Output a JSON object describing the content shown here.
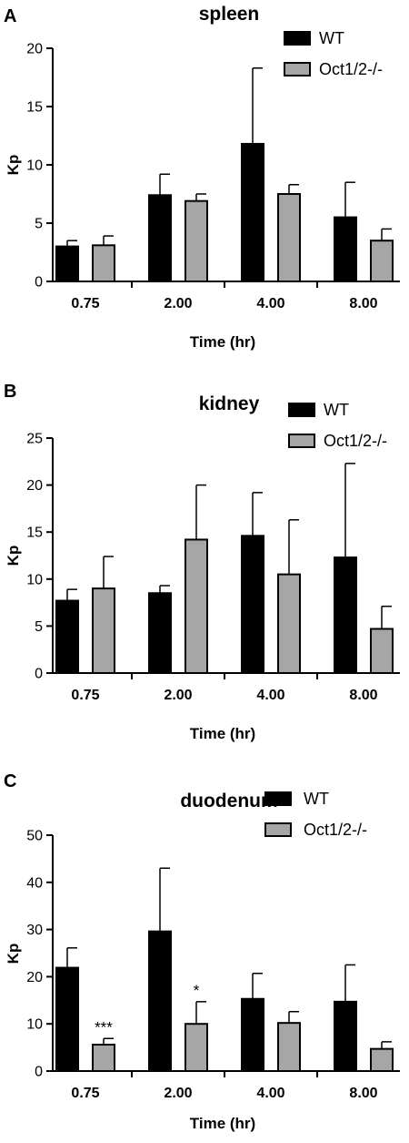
{
  "chart_data": [
    {
      "type": "bar",
      "panel": "A",
      "title": "spleen",
      "xlabel": "Time (hr)",
      "ylabel": "Kp",
      "ylim": [
        0,
        20
      ],
      "yticks": [
        "0",
        "5",
        "10",
        "15",
        "20"
      ],
      "categories": [
        "0.75",
        "2.00",
        "4.00",
        "8.00"
      ],
      "legend_position": "top-right",
      "series": [
        {
          "name": "WT",
          "color": "#000000",
          "values": [
            3.0,
            7.4,
            11.8,
            5.5
          ],
          "errors": [
            0.5,
            1.8,
            6.5,
            3.0
          ]
        },
        {
          "name": "Oct1/2-/-",
          "color": "#a6a6a6",
          "values": [
            3.1,
            6.9,
            7.5,
            3.5
          ],
          "errors": [
            0.8,
            0.6,
            0.8,
            1.0
          ]
        }
      ],
      "annotations": [
        "",
        "",
        "",
        ""
      ]
    },
    {
      "type": "bar",
      "panel": "B",
      "title": "kidney",
      "xlabel": "Time (hr)",
      "ylabel": "Kp",
      "ylim": [
        0,
        25
      ],
      "yticks": [
        "0",
        "5",
        "10",
        "15",
        "20",
        "25"
      ],
      "categories": [
        "0.75",
        "2.00",
        "4.00",
        "8.00"
      ],
      "legend_position": "top-right",
      "series": [
        {
          "name": "WT",
          "color": "#000000",
          "values": [
            7.7,
            8.5,
            14.6,
            12.3
          ],
          "errors": [
            1.2,
            0.8,
            4.6,
            10.0
          ]
        },
        {
          "name": "Oct1/2-/-",
          "color": "#a6a6a6",
          "values": [
            9.0,
            14.2,
            10.5,
            4.7
          ],
          "errors": [
            3.4,
            5.8,
            5.8,
            2.4
          ]
        }
      ],
      "annotations": [
        "",
        "",
        "",
        ""
      ]
    },
    {
      "type": "bar",
      "panel": "C",
      "title": "duodenum",
      "xlabel": "Time (hr)",
      "ylabel": "Kp",
      "ylim": [
        0,
        50
      ],
      "yticks": [
        "0",
        "10",
        "20",
        "30",
        "40",
        "50"
      ],
      "categories": [
        "0.75",
        "2.00",
        "4.00",
        "8.00"
      ],
      "legend_position": "top-right",
      "series": [
        {
          "name": "WT",
          "color": "#000000",
          "values": [
            21.9,
            29.6,
            15.3,
            14.7
          ],
          "errors": [
            4.2,
            13.4,
            5.4,
            7.8
          ]
        },
        {
          "name": "Oct1/2-/-",
          "color": "#a6a6a6",
          "values": [
            5.6,
            10.0,
            10.2,
            4.7
          ],
          "errors": [
            1.3,
            4.7,
            2.4,
            1.5
          ]
        }
      ],
      "annotations": [
        "***",
        "*",
        "",
        ""
      ]
    }
  ]
}
